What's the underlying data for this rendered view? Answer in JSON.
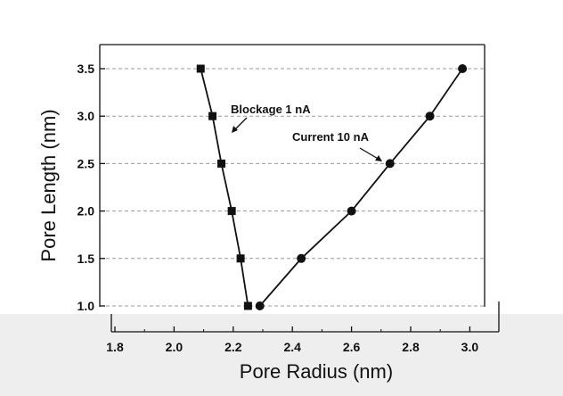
{
  "colors": {
    "background": "#ffffff",
    "band": "#eeeeee",
    "ink": "#111111",
    "grid": "#9a9a9a"
  },
  "chart_data": {
    "type": "line",
    "xlabel": "Pore Radius (nm)",
    "ylabel": "Pore Length (nm)",
    "xlim": [
      1.8,
      3.07
    ],
    "ylim": [
      1.0,
      3.68
    ],
    "xticks": [
      "1.8",
      "2.0",
      "2.2",
      "2.4",
      "2.6",
      "2.8",
      "3.0"
    ],
    "yticks": [
      "1.0",
      "1.5",
      "2.0",
      "2.5",
      "3.0",
      "3.5"
    ],
    "grid": "horizontal dashed",
    "series": [
      {
        "name": "Blockage  1 nA",
        "marker": "square",
        "x": [
          2.09,
          2.13,
          2.16,
          2.195,
          2.225,
          2.25
        ],
        "y": [
          3.5,
          3.0,
          2.5,
          2.0,
          1.5,
          1.0
        ]
      },
      {
        "name": "Current  10 nA",
        "marker": "circle",
        "x": [
          2.29,
          2.43,
          2.6,
          2.73,
          2.865,
          2.975
        ],
        "y": [
          1.0,
          1.5,
          2.0,
          2.5,
          3.0,
          3.5
        ]
      }
    ],
    "annotations": [
      {
        "text": "Blockage  1 nA",
        "series": 0
      },
      {
        "text": "Current  10 nA",
        "series": 1
      }
    ]
  }
}
